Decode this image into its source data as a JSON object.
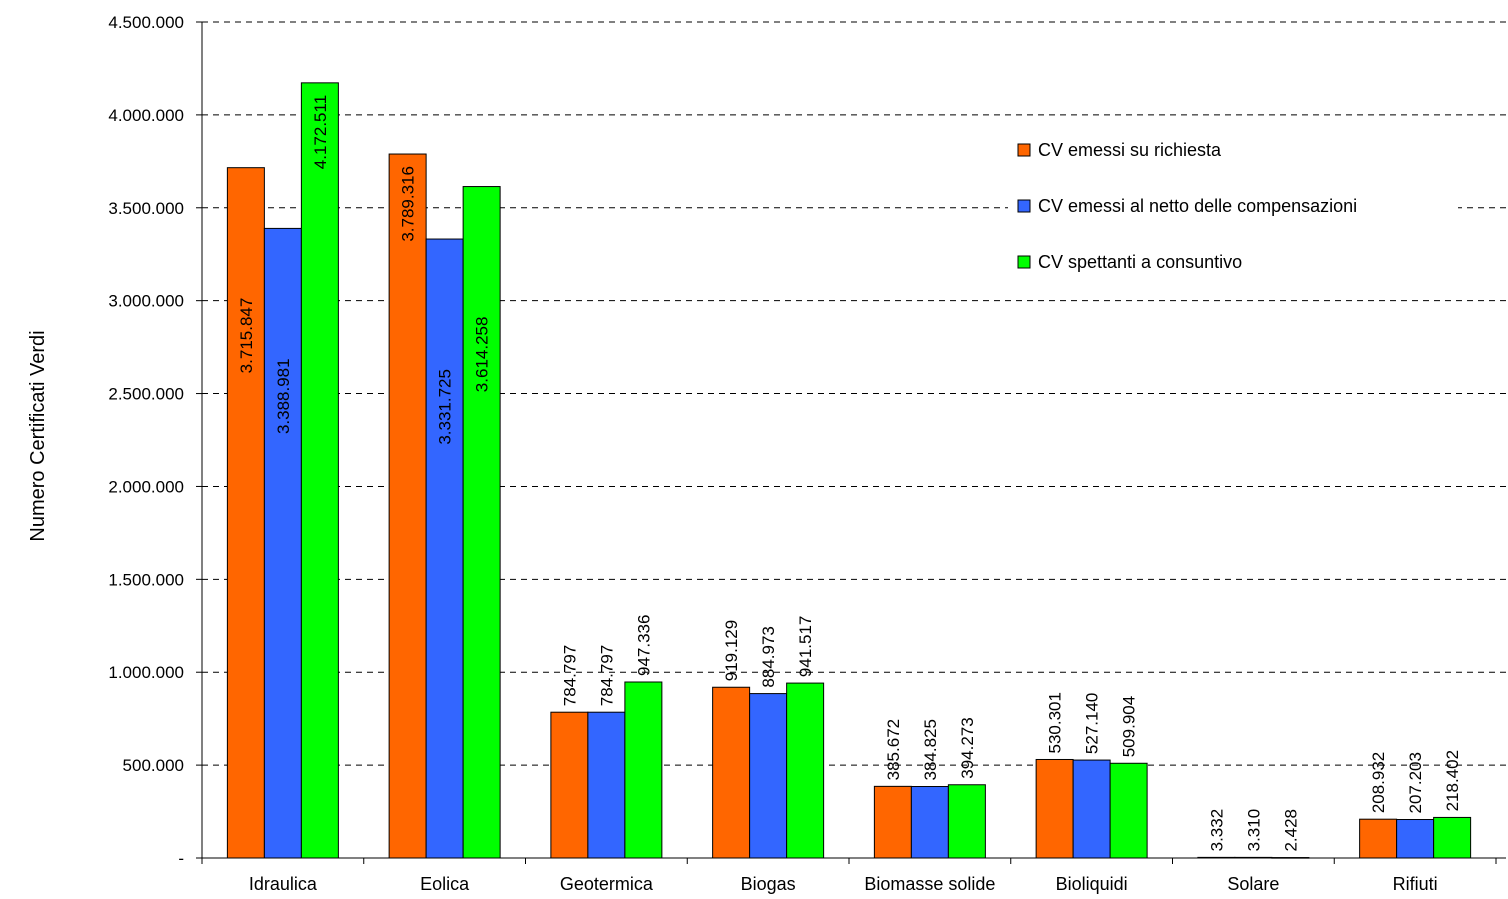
{
  "chart_data": {
    "type": "bar",
    "categories": [
      "Idraulica",
      "Eolica",
      "Geotermica",
      "Biogas",
      "Biomasse solide",
      "Bioliquidi",
      "Solare",
      "Rifiuti"
    ],
    "series": [
      {
        "name": "CV emessi su richiesta",
        "color": "#ff6600",
        "values": [
          3715847,
          3789316,
          784797,
          919129,
          385672,
          530301,
          3332,
          208932
        ],
        "labels": [
          "3.715.847",
          "3.789.316",
          "784.797",
          "919.129",
          "385.672",
          "530.301",
          "3.332",
          "208.932"
        ]
      },
      {
        "name": "CV emessi al netto delle compensazioni",
        "color": "#3366ff",
        "values": [
          3388981,
          3331725,
          784797,
          884973,
          384825,
          527140,
          3310,
          207203
        ],
        "labels": [
          "3.388.981",
          "3.331.725",
          "784.797",
          "884.973",
          "384.825",
          "527.140",
          "3.310",
          "207.203"
        ]
      },
      {
        "name": "CV spettanti a consuntivo",
        "color": "#00ff00",
        "values": [
          4172511,
          3614258,
          947336,
          941517,
          394273,
          509904,
          2428,
          218402
        ],
        "labels": [
          "4.172.511",
          "3.614.258",
          "947.336",
          "941.517",
          "394.273",
          "509.904",
          "2.428",
          "218.402"
        ]
      }
    ],
    "ylabel": "Numero Certificati Verdi",
    "ylim": [
      0,
      4500000
    ],
    "yticks": [
      0,
      500000,
      1000000,
      1500000,
      2000000,
      2500000,
      3000000,
      3500000,
      4000000,
      4500000
    ],
    "ytick_labels": [
      "-",
      "500.000",
      "1.000.000",
      "1.500.000",
      "2.000.000",
      "2.500.000",
      "3.000.000",
      "3.500.000",
      "4.000.000",
      "4.500.000"
    ],
    "grid": "dashed horizontal",
    "legend_position": "top-right"
  }
}
